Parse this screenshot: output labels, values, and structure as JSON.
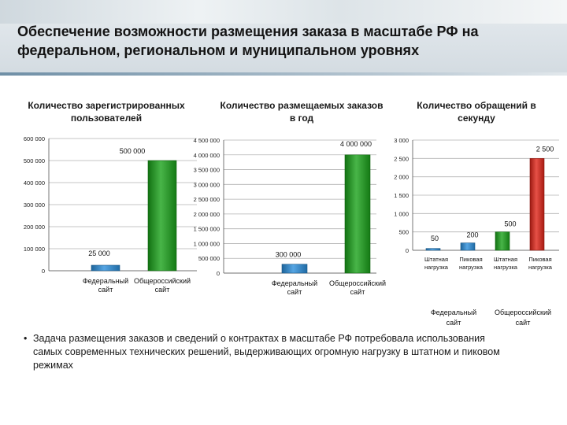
{
  "title": "Обеспечение возможности размещения заказа в масштабе РФ на федеральном, региональном и муниципальном уровнях",
  "colors": {
    "blue": "#2a8fdc",
    "green": "#1aa31a",
    "red": "#e02418",
    "grid": "#b0b0b0"
  },
  "chart_data": [
    {
      "type": "bar",
      "title": "Количество зарегистрированных пользователей",
      "categories": [
        "Федеральный сайт",
        "Общероссийский сайт"
      ],
      "values": [
        25000,
        500000
      ],
      "data_labels": [
        "25 000",
        "500 000"
      ],
      "bar_colors": [
        "blue",
        "green"
      ],
      "ylim": [
        0,
        600000
      ],
      "yticks": [
        0,
        100000,
        200000,
        300000,
        400000,
        500000,
        600000
      ],
      "ytick_labels": [
        "0",
        "100 000",
        "200 000",
        "300 000",
        "400 000",
        "500 000",
        "600 000"
      ],
      "grid": true
    },
    {
      "type": "bar",
      "title": "Количество размещаемых заказов в год",
      "categories": [
        "Федеральный сайт",
        "Общероссийский сайт"
      ],
      "values": [
        300000,
        4000000
      ],
      "data_labels": [
        "300 000",
        "4 000 000"
      ],
      "bar_colors": [
        "blue",
        "green"
      ],
      "ylim": [
        0,
        4500000
      ],
      "yticks": [
        0,
        500000,
        1000000,
        1500000,
        2000000,
        2500000,
        3000000,
        3500000,
        4000000,
        4500000
      ],
      "ytick_labels": [
        "0",
        "500 000",
        "1 000 000",
        "1 500 000",
        "2 000 000",
        "2 500 000",
        "3 000 000",
        "3 500 000",
        "4 000 000",
        "4 500 000"
      ],
      "grid": true
    },
    {
      "type": "bar",
      "title": "Количество обращений в секунду",
      "categories": [
        "Штатная нагрузка",
        "Пиковая нагрузка",
        "Штатная нагрузка",
        "Пиковая нагрузка"
      ],
      "groups": [
        "Федеральный сайт",
        "Общероссийский сайт"
      ],
      "values": [
        50,
        200,
        500,
        2500
      ],
      "data_labels": [
        "50",
        "200",
        "500",
        "2 500"
      ],
      "bar_colors": [
        "blue",
        "blue",
        "green",
        "red"
      ],
      "ylim": [
        0,
        3000
      ],
      "yticks": [
        0,
        500,
        1000,
        1500,
        2000,
        2500,
        3000
      ],
      "ytick_labels": [
        "0",
        "500",
        "1 000",
        "1 500",
        "2 000",
        "2 500",
        "3 000"
      ],
      "grid": true
    }
  ],
  "bullet": {
    "marker": "•",
    "text": "Задача размещения заказов и сведений о контрактах в масштабе РФ потребовала использования самых современных технических решений, выдерживающих огромную нагрузку в штатном и пиковом режимах"
  }
}
